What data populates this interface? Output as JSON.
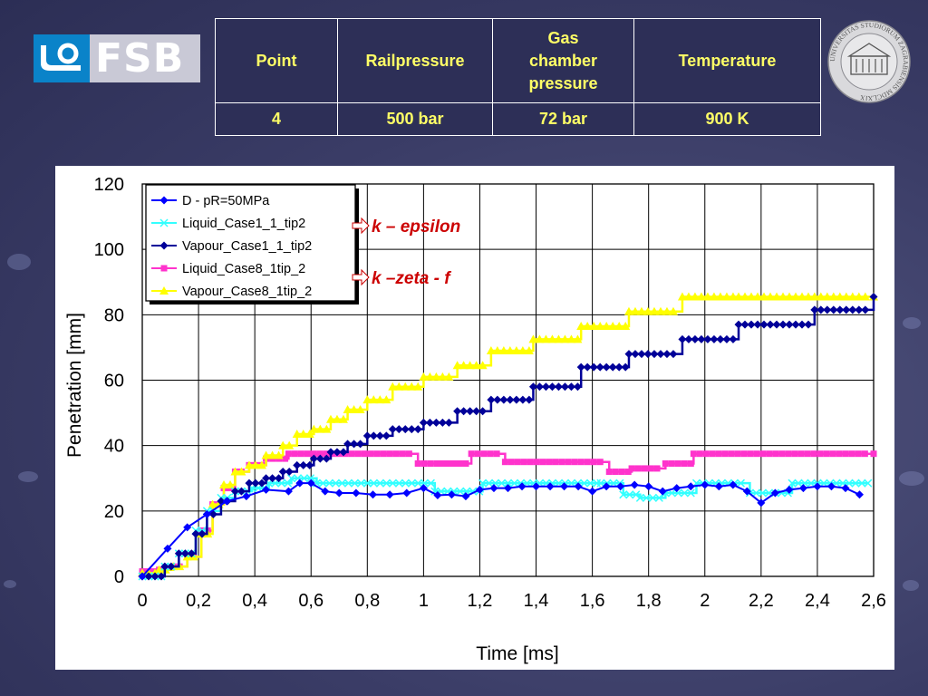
{
  "logo": {
    "text": "FSB"
  },
  "info_table": {
    "headers": [
      "Point",
      "Railpressure",
      "Gas\nchamber\npressure",
      "Temperature"
    ],
    "rows": [
      [
        "4",
        "500 bar",
        "72 bar",
        "900 K"
      ]
    ]
  },
  "seal": {
    "text": "UNIVERSITAS STUDIORUM ZAGRABIENSIS MDCLXIX"
  },
  "colors": {
    "background": "#3a3c66",
    "table_text": "#ffff66",
    "annotation": "#cc0000"
  },
  "chart_data": {
    "type": "line",
    "xlabel": "Time [ms]",
    "ylabel": "Penetration [mm]",
    "xlim": [
      0,
      2.6
    ],
    "ylim": [
      0,
      120
    ],
    "xticks": [
      "0",
      "0,2",
      "0,4",
      "0,6",
      "0,8",
      "1",
      "1,2",
      "1,4",
      "1,6",
      "1,8",
      "2",
      "2,2",
      "2,4",
      "2,6"
    ],
    "yticks": [
      "0",
      "20",
      "40",
      "60",
      "80",
      "100",
      "120"
    ],
    "grid": true,
    "legend_position": "top-left",
    "annotations": [
      {
        "text": "k – epsilon",
        "points_to": "Liquid_Case1_1_tip2 / Vapour_Case1_1_tip2"
      },
      {
        "text": "k –zeta - f",
        "points_to": "Liquid_Case8_1tip_2 / Vapour_Case8_1tip_2"
      }
    ],
    "series": [
      {
        "name": "D - pR=50MPa",
        "color": "#0000ff",
        "marker": "diamond",
        "style": "line",
        "x": [
          0,
          0.09,
          0.16,
          0.23,
          0.3,
          0.37,
          0.44,
          0.52,
          0.56,
          0.6,
          0.65,
          0.7,
          0.76,
          0.82,
          0.88,
          0.94,
          1.0,
          1.05,
          1.1,
          1.15,
          1.2,
          1.25,
          1.3,
          1.35,
          1.4,
          1.45,
          1.5,
          1.55,
          1.6,
          1.65,
          1.7,
          1.75,
          1.8,
          1.85,
          1.9,
          1.95,
          2.0,
          2.05,
          2.1,
          2.15,
          2.2,
          2.25,
          2.3,
          2.35,
          2.4,
          2.45,
          2.5,
          2.55
        ],
        "y": [
          0,
          8.5,
          15,
          19,
          23,
          24.5,
          26.5,
          26,
          28.5,
          28.5,
          26,
          25.5,
          25.5,
          25,
          25,
          25.5,
          27,
          24.8,
          25,
          24.5,
          26.5,
          27,
          27,
          27.5,
          27.5,
          27.5,
          27.5,
          27.5,
          26,
          27.5,
          27.5,
          28,
          27.5,
          26,
          27,
          27.5,
          28,
          27.5,
          28,
          26,
          22.5,
          25.5,
          26.5,
          27,
          27.5,
          27.5,
          27,
          25
        ]
      },
      {
        "name": "Liquid_Case1_1_tip2",
        "color": "#33ffff",
        "marker": "star",
        "style": "step",
        "x": [
          0,
          0.08,
          0.13,
          0.19,
          0.23,
          0.28,
          0.33,
          0.39,
          0.45,
          0.53,
          0.62,
          1.04,
          1.21,
          1.63,
          1.71,
          1.77,
          1.86,
          1.97,
          2.16,
          2.31,
          2.58
        ],
        "y": [
          0,
          3,
          7,
          14,
          20,
          24,
          26,
          27,
          28.5,
          30,
          28.5,
          26,
          28.5,
          28.5,
          25,
          24,
          25.5,
          28.5,
          25.5,
          28.5,
          28.5
        ]
      },
      {
        "name": "Vapour_Case1_1_tip2",
        "color": "#000099",
        "marker": "diamond",
        "style": "step",
        "x": [
          0,
          0.08,
          0.13,
          0.19,
          0.23,
          0.28,
          0.33,
          0.38,
          0.44,
          0.5,
          0.55,
          0.61,
          0.67,
          0.73,
          0.8,
          0.89,
          1.0,
          1.12,
          1.24,
          1.39,
          1.56,
          1.73,
          1.92,
          2.12,
          2.39,
          2.6
        ],
        "y": [
          0,
          3,
          7,
          13,
          19,
          23,
          26,
          28.5,
          30,
          32,
          34,
          36,
          38,
          40.5,
          43,
          45,
          47,
          50.5,
          54,
          58,
          64,
          68,
          72.5,
          77,
          81.5,
          85.5
        ]
      },
      {
        "name": "Liquid_Case8_1tip_2",
        "color": "#ff33cc",
        "marker": "square",
        "style": "step",
        "x": [
          0,
          0.06,
          0.11,
          0.16,
          0.21,
          0.25,
          0.29,
          0.33,
          0.38,
          0.44,
          0.52,
          0.98,
          1.06,
          1.17,
          1.29,
          1.47,
          1.66,
          1.74,
          1.86,
          1.96,
          2.6
        ],
        "y": [
          1.5,
          2,
          3,
          6,
          14,
          22,
          27,
          32,
          34,
          36,
          37.5,
          34.5,
          34.5,
          37.5,
          35,
          35,
          32,
          33,
          34.5,
          37.5,
          37.5
        ]
      },
      {
        "name": "Vapour_Case8_1tip_2",
        "color": "#ffff00",
        "marker": "triangle",
        "style": "step",
        "x": [
          0,
          0.06,
          0.11,
          0.16,
          0.21,
          0.25,
          0.29,
          0.33,
          0.38,
          0.44,
          0.5,
          0.55,
          0.61,
          0.67,
          0.73,
          0.8,
          0.89,
          1.0,
          1.12,
          1.24,
          1.39,
          1.56,
          1.73,
          1.92,
          2.12,
          2.39,
          2.6
        ],
        "y": [
          1,
          2,
          3,
          6,
          13,
          22,
          28,
          32,
          34,
          37,
          40,
          43.5,
          45,
          48,
          51,
          54,
          58,
          61,
          64.5,
          69,
          72.5,
          76.5,
          81,
          85.5,
          85.5,
          85.5,
          85.5
        ]
      }
    ]
  }
}
